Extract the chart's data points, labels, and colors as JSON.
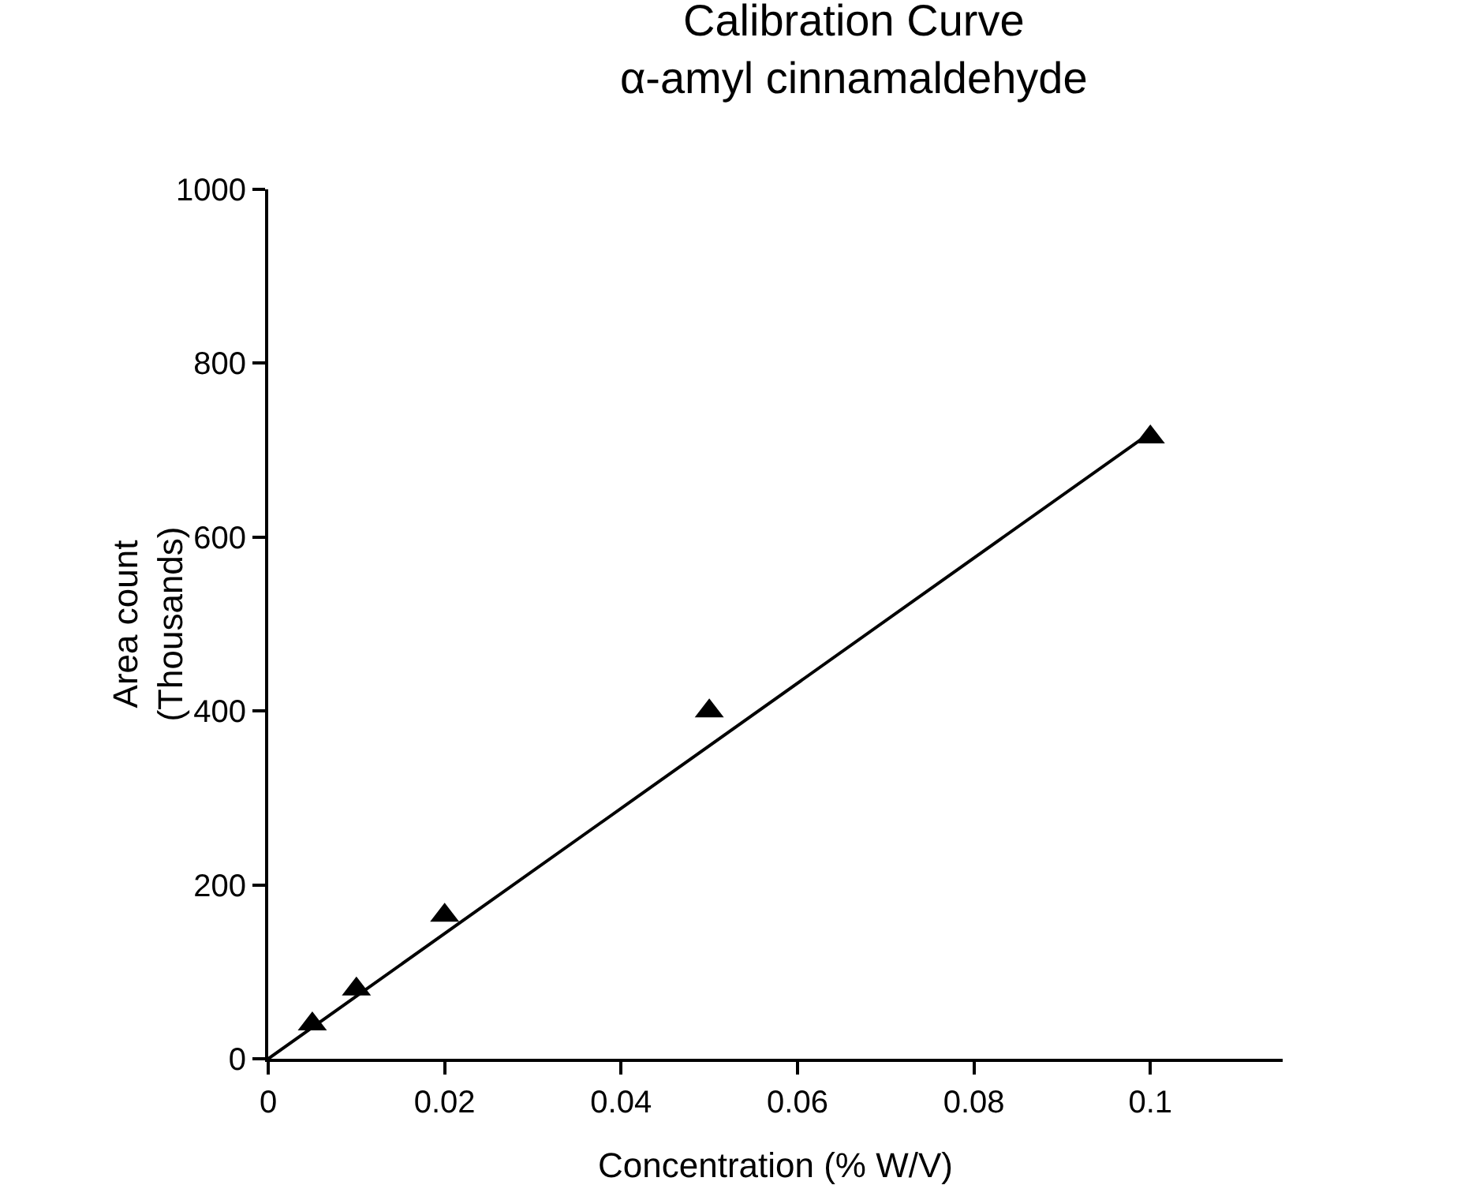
{
  "chart_data": {
    "type": "scatter",
    "title": "Calibration Curve\nα-amyl cinnamaldehyde",
    "xlabel": "Concentration (% W/V)",
    "ylabel": "Area count\n(Thousands)",
    "series": [
      {
        "color": "#000000",
        "marker": "triangle",
        "x": [
          0.005,
          0.01,
          0.02,
          0.05,
          0.1
        ],
        "values": [
          40,
          80,
          165,
          400,
          715
        ]
      },
      {
        "type": "line",
        "color": "#000000",
        "marker": "none",
        "line_style": "solid",
        "x": [
          0,
          0.1
        ],
        "values": [
          0,
          720
        ]
      }
    ],
    "xlim": [
      0,
      0.115
    ],
    "xticks": [
      0,
      0.02,
      0.04,
      0.06,
      0.08,
      0.1
    ],
    "ylim": [
      0,
      1000
    ],
    "yticks": [
      0,
      200,
      400,
      600,
      800,
      1000
    ],
    "grid": false
  }
}
